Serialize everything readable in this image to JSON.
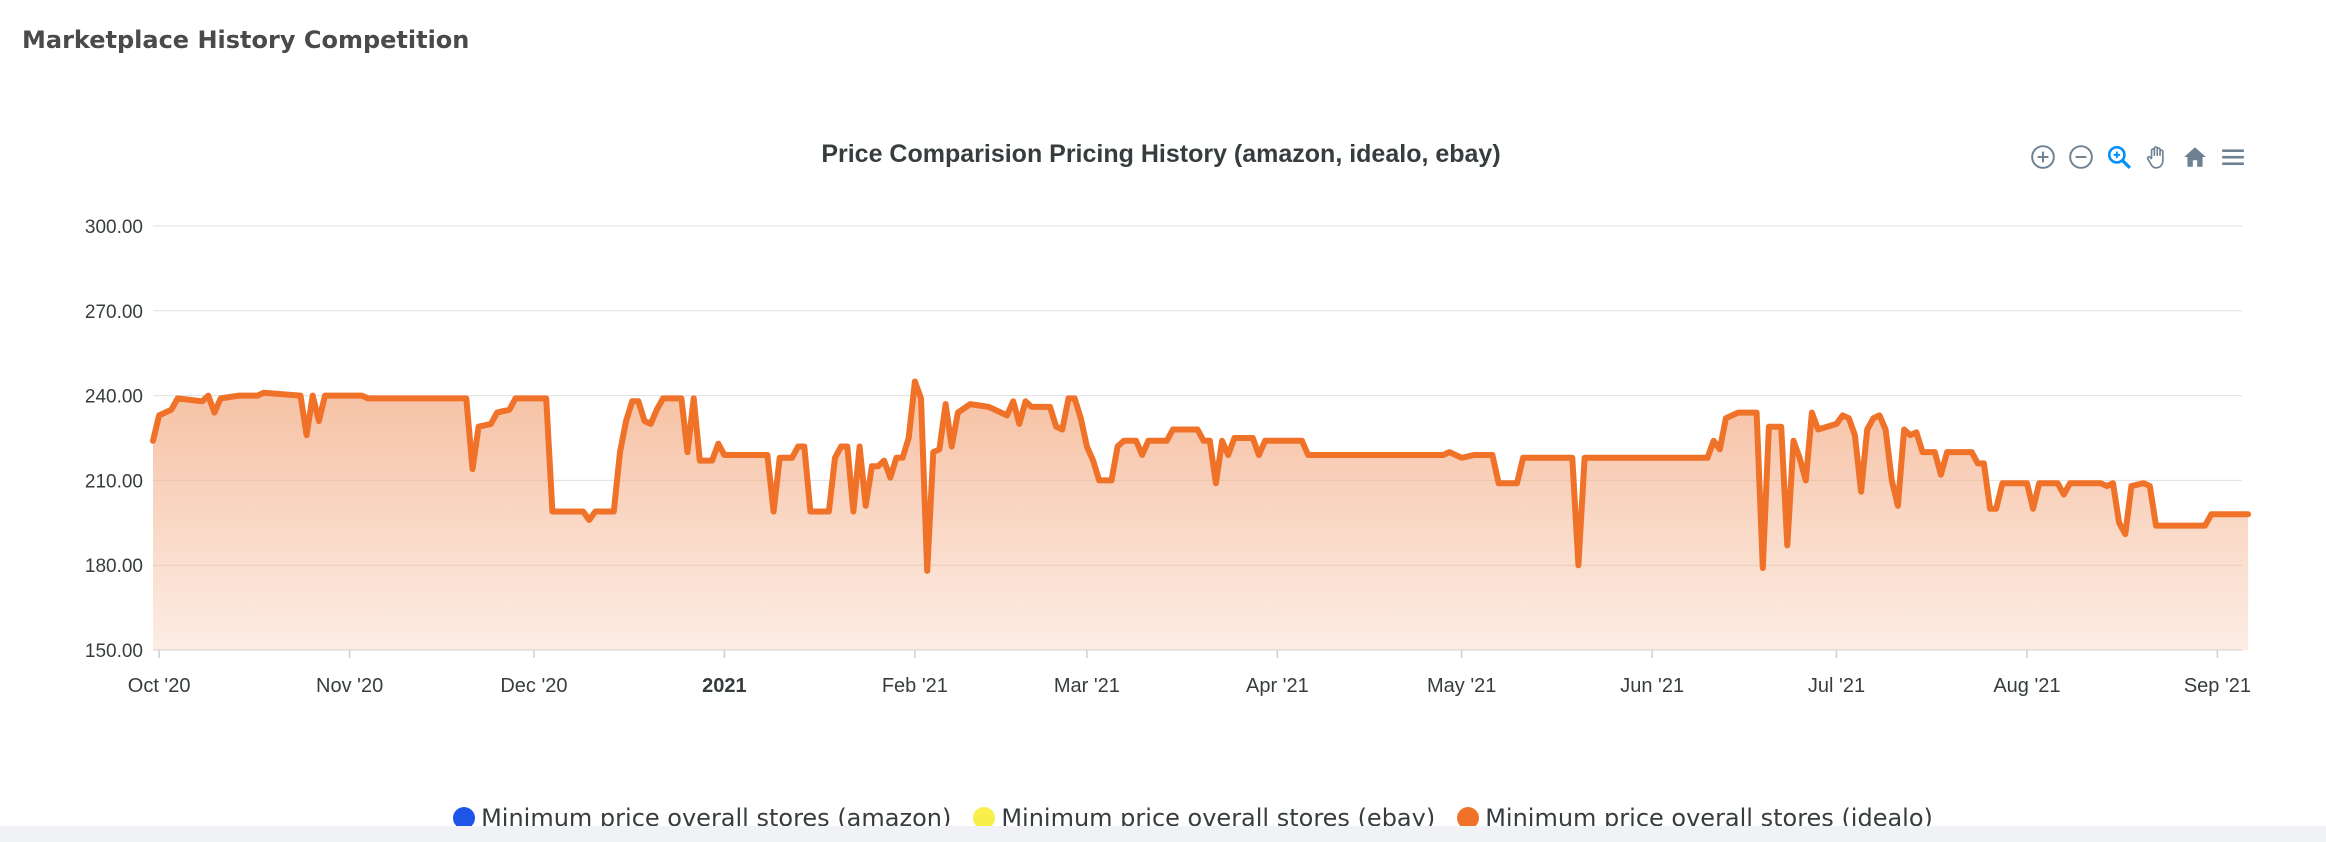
{
  "page": {
    "title": "Marketplace History Competition"
  },
  "toolbar": {
    "icons": [
      "zoom-in-icon",
      "zoom-out-icon",
      "selection-zoom-icon",
      "pan-hand-icon",
      "home-reset-icon",
      "menu-icon"
    ],
    "active_color": "#008ffb",
    "default_color": "#6e8192"
  },
  "colors": {
    "series_line": "#f07229",
    "series_fill_top": "#f2a57a",
    "grid": "#e0e0e0",
    "axis_text": "#373d3f"
  },
  "chart_data": {
    "type": "area",
    "title": "Price Comparision Pricing History (amazon, idealo, ebay)",
    "ylim": [
      150,
      300
    ],
    "y_ticks": [
      "150.00",
      "180.00",
      "210.00",
      "240.00",
      "270.00",
      "300.00"
    ],
    "x_ticks": [
      {
        "label": "Oct '20",
        "date": "2020-10-01",
        "bold": false
      },
      {
        "label": "Nov '20",
        "date": "2020-11-01",
        "bold": false
      },
      {
        "label": "Dec '20",
        "date": "2020-12-01",
        "bold": false
      },
      {
        "label": "2021",
        "date": "2021-01-01",
        "bold": true
      },
      {
        "label": "Feb '21",
        "date": "2021-02-01",
        "bold": false
      },
      {
        "label": "Mar '21",
        "date": "2021-03-01",
        "bold": false
      },
      {
        "label": "Apr '21",
        "date": "2021-04-01",
        "bold": false
      },
      {
        "label": "May '21",
        "date": "2021-05-01",
        "bold": false
      },
      {
        "label": "Jun '21",
        "date": "2021-06-01",
        "bold": false
      },
      {
        "label": "Jul '21",
        "date": "2021-07-01",
        "bold": false
      },
      {
        "label": "Aug '21",
        "date": "2021-08-01",
        "bold": false
      },
      {
        "label": "Sep '21",
        "date": "2021-09-01",
        "bold": false
      }
    ],
    "xlim": [
      "2020-09-30",
      "2021-09-05"
    ],
    "grid": true,
    "legend_position": "bottom",
    "series": [
      {
        "name": "Minimum price overall stores (amazon)",
        "color": "#1f54e8",
        "points": []
      },
      {
        "name": "Minimum price overall stores (ebay)",
        "color": "#f8ef4a",
        "points": []
      },
      {
        "name": "Minimum price overall stores (idealo)",
        "color": "#f07229",
        "points": [
          [
            "2020-09-30",
            224
          ],
          [
            "2020-10-01",
            233
          ],
          [
            "2020-10-03",
            235
          ],
          [
            "2020-10-04",
            239
          ],
          [
            "2020-10-08",
            238
          ],
          [
            "2020-10-09",
            240
          ],
          [
            "2020-10-10",
            234
          ],
          [
            "2020-10-11",
            239
          ],
          [
            "2020-10-14",
            240
          ],
          [
            "2020-10-17",
            240
          ],
          [
            "2020-10-18",
            241
          ],
          [
            "2020-10-24",
            240
          ],
          [
            "2020-10-25",
            226
          ],
          [
            "2020-10-26",
            240
          ],
          [
            "2020-10-27",
            231
          ],
          [
            "2020-10-28",
            240
          ],
          [
            "2020-11-03",
            240
          ],
          [
            "2020-11-04",
            239
          ],
          [
            "2020-11-10",
            239
          ],
          [
            "2020-11-20",
            239
          ],
          [
            "2020-11-21",
            214
          ],
          [
            "2020-11-22",
            229
          ],
          [
            "2020-11-24",
            230
          ],
          [
            "2020-11-25",
            234
          ],
          [
            "2020-11-27",
            235
          ],
          [
            "2020-11-28",
            239
          ],
          [
            "2020-12-03",
            239
          ],
          [
            "2020-12-04",
            199
          ],
          [
            "2020-12-05",
            199
          ],
          [
            "2020-12-09",
            199
          ],
          [
            "2020-12-10",
            196
          ],
          [
            "2020-12-11",
            199
          ],
          [
            "2020-12-14",
            199
          ],
          [
            "2020-12-15",
            220
          ],
          [
            "2020-12-16",
            231
          ],
          [
            "2020-12-17",
            238
          ],
          [
            "2020-12-18",
            238
          ],
          [
            "2020-12-19",
            231
          ],
          [
            "2020-12-20",
            230
          ],
          [
            "2020-12-21",
            235
          ],
          [
            "2020-12-22",
            239
          ],
          [
            "2020-12-25",
            239
          ],
          [
            "2020-12-26",
            220
          ],
          [
            "2020-12-27",
            239
          ],
          [
            "2020-12-28",
            217
          ],
          [
            "2020-12-30",
            217
          ],
          [
            "2020-12-31",
            223
          ],
          [
            "2021-01-01",
            219
          ],
          [
            "2021-01-06",
            219
          ],
          [
            "2021-01-08",
            219
          ],
          [
            "2021-01-09",
            199
          ],
          [
            "2021-01-10",
            218
          ],
          [
            "2021-01-12",
            218
          ],
          [
            "2021-01-13",
            222
          ],
          [
            "2021-01-14",
            222
          ],
          [
            "2021-01-15",
            199
          ],
          [
            "2021-01-18",
            199
          ],
          [
            "2021-01-19",
            218
          ],
          [
            "2021-01-20",
            222
          ],
          [
            "2021-01-21",
            222
          ],
          [
            "2021-01-22",
            199
          ],
          [
            "2021-01-23",
            222
          ],
          [
            "2021-01-24",
            201
          ],
          [
            "2021-01-25",
            215
          ],
          [
            "2021-01-26",
            215
          ],
          [
            "2021-01-27",
            217
          ],
          [
            "2021-01-28",
            211
          ],
          [
            "2021-01-29",
            218
          ],
          [
            "2021-01-30",
            218
          ],
          [
            "2021-01-31",
            225
          ],
          [
            "2021-02-01",
            245
          ],
          [
            "2021-02-02",
            239
          ],
          [
            "2021-02-03",
            178
          ],
          [
            "2021-02-04",
            220
          ],
          [
            "2021-02-05",
            221
          ],
          [
            "2021-02-06",
            237
          ],
          [
            "2021-02-07",
            222
          ],
          [
            "2021-02-08",
            234
          ],
          [
            "2021-02-10",
            237
          ],
          [
            "2021-02-13",
            236
          ],
          [
            "2021-02-16",
            233
          ],
          [
            "2021-02-17",
            238
          ],
          [
            "2021-02-18",
            230
          ],
          [
            "2021-02-19",
            238
          ],
          [
            "2021-02-20",
            236
          ],
          [
            "2021-02-23",
            236
          ],
          [
            "2021-02-24",
            229
          ],
          [
            "2021-02-25",
            228
          ],
          [
            "2021-02-26",
            239
          ],
          [
            "2021-02-27",
            239
          ],
          [
            "2021-02-28",
            232
          ],
          [
            "2021-03-01",
            222
          ],
          [
            "2021-03-02",
            217
          ],
          [
            "2021-03-03",
            210
          ],
          [
            "2021-03-05",
            210
          ],
          [
            "2021-03-06",
            222
          ],
          [
            "2021-03-07",
            224
          ],
          [
            "2021-03-09",
            224
          ],
          [
            "2021-03-10",
            219
          ],
          [
            "2021-03-11",
            224
          ],
          [
            "2021-03-14",
            224
          ],
          [
            "2021-03-15",
            228
          ],
          [
            "2021-03-19",
            228
          ],
          [
            "2021-03-20",
            224
          ],
          [
            "2021-03-21",
            224
          ],
          [
            "2021-03-22",
            209
          ],
          [
            "2021-03-23",
            224
          ],
          [
            "2021-03-24",
            219
          ],
          [
            "2021-03-25",
            225
          ],
          [
            "2021-03-28",
            225
          ],
          [
            "2021-03-29",
            219
          ],
          [
            "2021-03-30",
            224
          ],
          [
            "2021-04-05",
            224
          ],
          [
            "2021-04-06",
            219
          ],
          [
            "2021-04-15",
            219
          ],
          [
            "2021-04-28",
            219
          ],
          [
            "2021-04-29",
            220
          ],
          [
            "2021-05-01",
            218
          ],
          [
            "2021-05-03",
            219
          ],
          [
            "2021-05-04",
            219
          ],
          [
            "2021-05-06",
            219
          ],
          [
            "2021-05-07",
            209
          ],
          [
            "2021-05-10",
            209
          ],
          [
            "2021-05-11",
            218
          ],
          [
            "2021-05-19",
            218
          ],
          [
            "2021-05-20",
            180
          ],
          [
            "2021-05-21",
            218
          ],
          [
            "2021-06-10",
            218
          ],
          [
            "2021-06-11",
            224
          ],
          [
            "2021-06-12",
            221
          ],
          [
            "2021-06-13",
            232
          ],
          [
            "2021-06-15",
            234
          ],
          [
            "2021-06-18",
            234
          ],
          [
            "2021-06-19",
            179
          ],
          [
            "2021-06-20",
            229
          ],
          [
            "2021-06-22",
            229
          ],
          [
            "2021-06-23",
            187
          ],
          [
            "2021-06-24",
            224
          ],
          [
            "2021-06-25",
            218
          ],
          [
            "2021-06-26",
            210
          ],
          [
            "2021-06-27",
            234
          ],
          [
            "2021-06-28",
            228
          ],
          [
            "2021-07-01",
            230
          ],
          [
            "2021-07-02",
            233
          ],
          [
            "2021-07-03",
            232
          ],
          [
            "2021-07-04",
            226
          ],
          [
            "2021-07-05",
            206
          ],
          [
            "2021-07-06",
            228
          ],
          [
            "2021-07-07",
            232
          ],
          [
            "2021-07-08",
            233
          ],
          [
            "2021-07-09",
            228
          ],
          [
            "2021-07-10",
            210
          ],
          [
            "2021-07-11",
            201
          ],
          [
            "2021-07-12",
            228
          ],
          [
            "2021-07-13",
            226
          ],
          [
            "2021-07-14",
            227
          ],
          [
            "2021-07-15",
            220
          ],
          [
            "2021-07-17",
            220
          ],
          [
            "2021-07-18",
            212
          ],
          [
            "2021-07-19",
            220
          ],
          [
            "2021-07-23",
            220
          ],
          [
            "2021-07-24",
            216
          ],
          [
            "2021-07-25",
            216
          ],
          [
            "2021-07-26",
            200
          ],
          [
            "2021-07-27",
            200
          ],
          [
            "2021-07-28",
            209
          ],
          [
            "2021-08-01",
            209
          ],
          [
            "2021-08-02",
            200
          ],
          [
            "2021-08-03",
            209
          ],
          [
            "2021-08-06",
            209
          ],
          [
            "2021-08-07",
            205
          ],
          [
            "2021-08-08",
            209
          ],
          [
            "2021-08-13",
            209
          ],
          [
            "2021-08-14",
            208
          ],
          [
            "2021-08-15",
            209
          ],
          [
            "2021-08-16",
            195
          ],
          [
            "2021-08-17",
            191
          ],
          [
            "2021-08-18",
            208
          ],
          [
            "2021-08-20",
            209
          ],
          [
            "2021-08-21",
            208
          ],
          [
            "2021-08-22",
            194
          ],
          [
            "2021-08-30",
            194
          ],
          [
            "2021-08-31",
            198
          ],
          [
            "2021-09-06",
            198
          ]
        ]
      }
    ]
  },
  "legend": {
    "items": [
      {
        "label": "Minimum price overall stores (amazon)",
        "color": "#1f54e8"
      },
      {
        "label": "Minimum price overall stores (ebay)",
        "color": "#f8ef4a"
      },
      {
        "label": "Minimum price overall stores (idealo)",
        "color": "#f07229"
      }
    ]
  }
}
